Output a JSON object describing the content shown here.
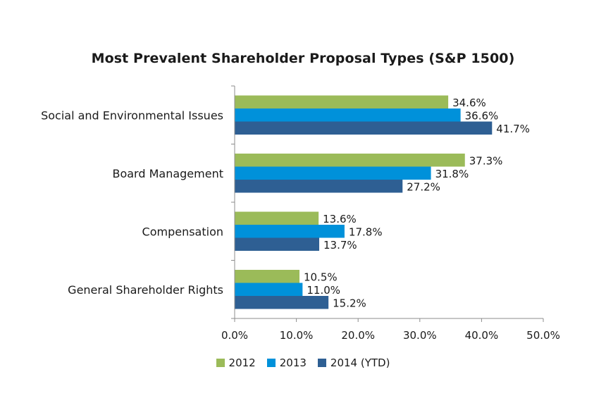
{
  "chart_data": {
    "type": "bar",
    "orientation": "horizontal",
    "title": "Most Prevalent Shareholder Proposal Types (S&P 1500)",
    "categories": [
      "Social and Environmental Issues",
      "Board Management",
      "Compensation",
      "General Shareholder Rights"
    ],
    "series": [
      {
        "name": "2012",
        "color": "#9BBB59",
        "values": [
          34.6,
          37.3,
          13.6,
          10.5
        ],
        "labels": [
          "34.6%",
          "37.3%",
          "13.6%",
          "10.5%"
        ]
      },
      {
        "name": "2013",
        "color": "#0091DA",
        "values": [
          36.6,
          31.8,
          17.8,
          11.0
        ],
        "labels": [
          "36.6%",
          "31.8%",
          "17.8%",
          "11.0%"
        ]
      },
      {
        "name": "2014 (YTD)",
        "color": "#2E5F93",
        "values": [
          41.7,
          27.2,
          13.7,
          15.2
        ],
        "labels": [
          "41.7%",
          "27.2%",
          "13.7%",
          "15.2%"
        ]
      }
    ],
    "xlim": [
      0,
      50
    ],
    "xticks": [
      0,
      10,
      20,
      30,
      40,
      50
    ],
    "xtick_labels": [
      "0.0%",
      "10.0%",
      "20.0%",
      "30.0%",
      "40.0%",
      "50.0%"
    ],
    "xlabel": "",
    "ylabel": "",
    "grid": false,
    "legend_position": "bottom"
  }
}
